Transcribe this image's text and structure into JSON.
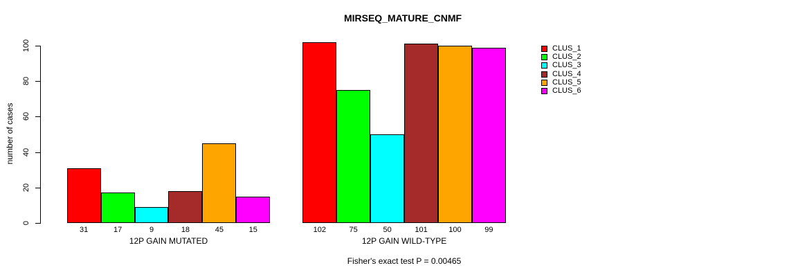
{
  "chart": {
    "title": "MIRSEQ_MATURE_CNMF",
    "ylabel": "number of cases",
    "annotation": "Fisher's exact test P = 0.00465"
  },
  "chart_data": {
    "type": "bar",
    "title": "MIRSEQ_MATURE_CNMF",
    "xlabel": "",
    "ylabel": "number of cases",
    "ylim": [
      0,
      100
    ],
    "yticks": [
      0,
      20,
      40,
      60,
      80,
      100
    ],
    "grid": false,
    "legend_position": "right",
    "legend": [
      "CLUS_1",
      "CLUS_2",
      "CLUS_3",
      "CLUS_4",
      "CLUS_5",
      "CLUS_6"
    ],
    "series_colors": [
      "#FF0000",
      "#00FF00",
      "#00FFFF",
      "#A52A2A",
      "#FFA500",
      "#FF00FF"
    ],
    "categories": [
      "12P GAIN MUTATED",
      "12P GAIN WILD-TYPE"
    ],
    "series": [
      {
        "name": "CLUS_1",
        "values": [
          31,
          102
        ]
      },
      {
        "name": "CLUS_2",
        "values": [
          17,
          75
        ]
      },
      {
        "name": "CLUS_3",
        "values": [
          9,
          50
        ]
      },
      {
        "name": "CLUS_4",
        "values": [
          18,
          101
        ]
      },
      {
        "name": "CLUS_5",
        "values": [
          45,
          100
        ]
      },
      {
        "name": "CLUS_6",
        "values": [
          15,
          99
        ]
      }
    ],
    "bar_labels": [
      [
        "31",
        "17",
        "9",
        "18",
        "45",
        "15"
      ],
      [
        "102",
        "75",
        "50",
        "101",
        "100",
        "99"
      ]
    ],
    "annotation": "Fisher's exact test P = 0.00465"
  }
}
